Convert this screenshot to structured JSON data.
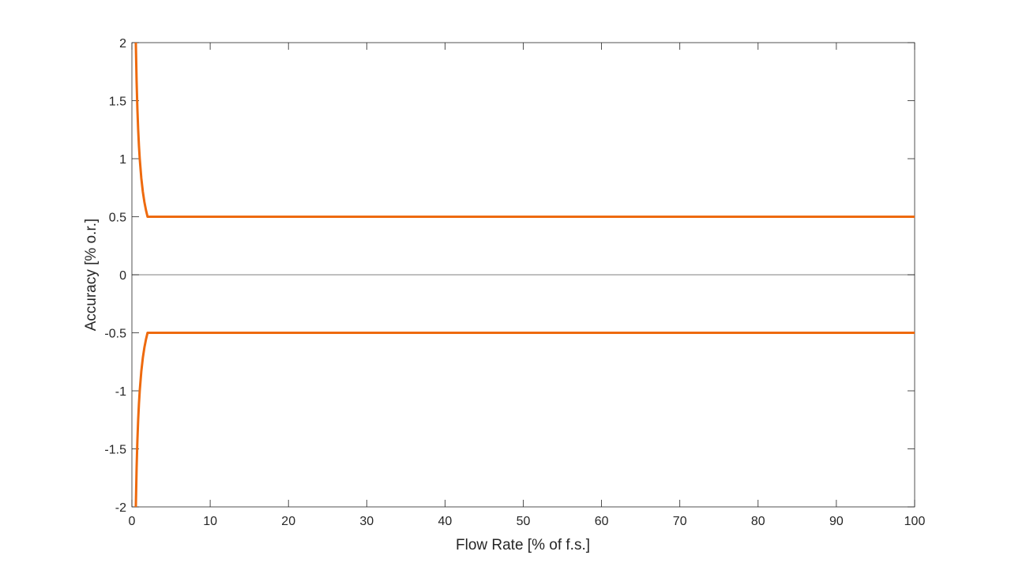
{
  "chart_data": {
    "type": "line",
    "title": "",
    "xlabel": "Flow Rate [% of f.s.]",
    "ylabel": "Accuracy [% o.r.]",
    "xlim": [
      0,
      100
    ],
    "ylim": [
      -2,
      2
    ],
    "xticks": [
      "0",
      "10",
      "20",
      "30",
      "40",
      "50",
      "60",
      "70",
      "80",
      "90",
      "100"
    ],
    "yticks": [
      "-2",
      "-1.5",
      "-1",
      "-0.5",
      "0",
      "0.5",
      "1",
      "1.5",
      "2"
    ],
    "grid": false,
    "reference_line_y": 0,
    "series": [
      {
        "color": "#EE6A0E",
        "x": [
          0.5,
          0.6,
          0.7,
          0.8,
          0.9,
          1.0,
          1.2,
          1.4,
          1.6,
          1.8,
          2.0,
          100
        ],
        "y": [
          2.0,
          1.667,
          1.429,
          1.25,
          1.111,
          1.0,
          0.833,
          0.714,
          0.625,
          0.556,
          0.5,
          0.5
        ]
      },
      {
        "color": "#EE6A0E",
        "x": [
          0.5,
          0.6,
          0.7,
          0.8,
          0.9,
          1.0,
          1.2,
          1.4,
          1.6,
          1.8,
          2.0,
          100
        ],
        "y": [
          -2.0,
          -1.667,
          -1.429,
          -1.25,
          -1.111,
          -1.0,
          -0.833,
          -0.714,
          -0.625,
          -0.556,
          -0.5,
          -0.5
        ]
      }
    ]
  }
}
